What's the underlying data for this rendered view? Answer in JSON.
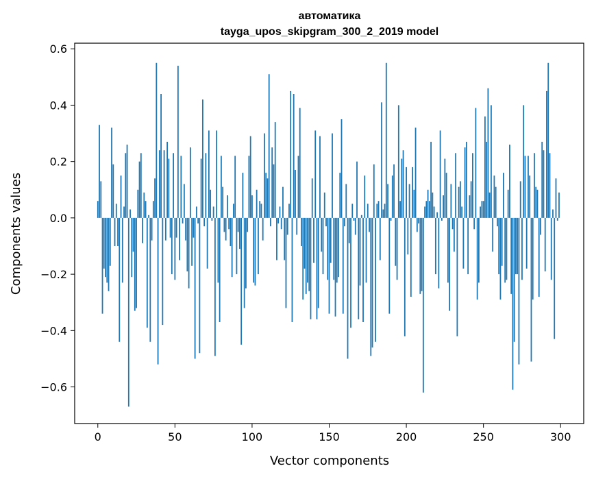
{
  "chart_data": {
    "type": "bar",
    "title": "автоматика",
    "subtitle": "tayga_upos_skipgram_300_2_2019 model",
    "xlabel": "Vector components",
    "ylabel": "Components values",
    "xlim": [
      -15,
      315
    ],
    "ylim": [
      -0.73,
      0.62
    ],
    "xticks": [
      0,
      50,
      100,
      150,
      200,
      250,
      300
    ],
    "yticks": [
      -0.6,
      -0.4,
      -0.2,
      0.0,
      0.2,
      0.4,
      0.6
    ],
    "ytick_labels": [
      "−0.6",
      "−0.4",
      "−0.2",
      "0.0",
      "0.2",
      "0.4",
      "0.6"
    ],
    "grid": false,
    "bar_color": "#1f77b4",
    "x": [
      0,
      1,
      2,
      3,
      4,
      5,
      6,
      7,
      8,
      9,
      10,
      11,
      12,
      13,
      14,
      15,
      16,
      17,
      18,
      19,
      20,
      21,
      22,
      23,
      24,
      25,
      26,
      27,
      28,
      29,
      30,
      31,
      32,
      33,
      34,
      35,
      36,
      37,
      38,
      39,
      40,
      41,
      42,
      43,
      44,
      45,
      46,
      47,
      48,
      49,
      50,
      51,
      52,
      53,
      54,
      55,
      56,
      57,
      58,
      59,
      60,
      61,
      62,
      63,
      64,
      65,
      66,
      67,
      68,
      69,
      70,
      71,
      72,
      73,
      74,
      75,
      76,
      77,
      78,
      79,
      80,
      81,
      82,
      83,
      84,
      85,
      86,
      87,
      88,
      89,
      90,
      91,
      92,
      93,
      94,
      95,
      96,
      97,
      98,
      99,
      100,
      101,
      102,
      103,
      104,
      105,
      106,
      107,
      108,
      109,
      110,
      111,
      112,
      113,
      114,
      115,
      116,
      117,
      118,
      119,
      120,
      121,
      122,
      123,
      124,
      125,
      126,
      127,
      128,
      129,
      130,
      131,
      132,
      133,
      134,
      135,
      136,
      137,
      138,
      139,
      140,
      141,
      142,
      143,
      144,
      145,
      146,
      147,
      148,
      149,
      150,
      151,
      152,
      153,
      154,
      155,
      156,
      157,
      158,
      159,
      160,
      161,
      162,
      163,
      164,
      165,
      166,
      167,
      168,
      169,
      170,
      171,
      172,
      173,
      174,
      175,
      176,
      177,
      178,
      179,
      180,
      181,
      182,
      183,
      184,
      185,
      186,
      187,
      188,
      189,
      190,
      191,
      192,
      193,
      194,
      195,
      196,
      197,
      198,
      199,
      200,
      201,
      202,
      203,
      204,
      205,
      206,
      207,
      208,
      209,
      210,
      211,
      212,
      213,
      214,
      215,
      216,
      217,
      218,
      219,
      220,
      221,
      222,
      223,
      224,
      225,
      226,
      227,
      228,
      229,
      230,
      231,
      232,
      233,
      234,
      235,
      236,
      237,
      238,
      239,
      240,
      241,
      242,
      243,
      244,
      245,
      246,
      247,
      248,
      249,
      250,
      251,
      252,
      253,
      254,
      255,
      256,
      257,
      258,
      259,
      260,
      261,
      262,
      263,
      264,
      265,
      266,
      267,
      268,
      269,
      270,
      271,
      272,
      273,
      274,
      275,
      276,
      277,
      278,
      279,
      280,
      281,
      282,
      283,
      284,
      285,
      286,
      287,
      288,
      289,
      290,
      291,
      292,
      293,
      294,
      295,
      296,
      297,
      298,
      299
    ],
    "values": [
      0.06,
      0.33,
      0.13,
      -0.34,
      -0.18,
      -0.21,
      -0.23,
      -0.26,
      -0.17,
      0.32,
      0.19,
      -0.1,
      0.05,
      -0.1,
      -0.44,
      0.15,
      -0.23,
      0.04,
      0.23,
      0.26,
      -0.67,
      0.03,
      -0.21,
      -0.12,
      -0.33,
      -0.32,
      0.1,
      0.2,
      0.23,
      -0.09,
      0.09,
      0.06,
      -0.39,
      0.01,
      -0.44,
      -0.08,
      0.06,
      0.14,
      0.55,
      -0.52,
      0.24,
      0.44,
      -0.38,
      0.24,
      -0.08,
      0.27,
      0.21,
      -0.07,
      -0.2,
      0.23,
      -0.22,
      -0.07,
      0.54,
      -0.15,
      0.22,
      -0.02,
      0.12,
      -0.08,
      -0.19,
      -0.25,
      0.25,
      -0.17,
      -0.07,
      -0.5,
      0.04,
      -0.02,
      -0.48,
      0.21,
      0.42,
      -0.03,
      0.23,
      -0.18,
      0.31,
      0.1,
      -0.01,
      0.04,
      -0.49,
      0.31,
      -0.23,
      -0.37,
      0.22,
      0.11,
      -0.05,
      -0.08,
      0.08,
      -0.04,
      -0.1,
      -0.21,
      0.05,
      0.22,
      -0.2,
      -0.05,
      -0.11,
      -0.45,
      0.16,
      -0.32,
      -0.25,
      -0.05,
      0.22,
      0.29,
      0.08,
      -0.23,
      -0.24,
      0.1,
      -0.2,
      0.06,
      0.05,
      -0.08,
      0.3,
      0.16,
      0.14,
      0.51,
      -0.03,
      0.25,
      0.19,
      0.34,
      -0.15,
      -0.02,
      0.04,
      -0.04,
      0.11,
      -0.15,
      -0.32,
      -0.06,
      0.05,
      0.45,
      -0.37,
      0.44,
      0.17,
      -0.06,
      0.22,
      0.39,
      -0.1,
      -0.29,
      -0.18,
      -0.27,
      -0.23,
      -0.26,
      -0.36,
      0.14,
      -0.16,
      0.31,
      -0.36,
      -0.32,
      0.29,
      -0.12,
      -0.2,
      0.09,
      -0.03,
      -0.22,
      -0.34,
      -0.16,
      0.3,
      -0.22,
      -0.35,
      -0.23,
      -0.21,
      0.16,
      0.35,
      -0.34,
      -0.03,
      0.12,
      -0.5,
      -0.09,
      -0.39,
      0.05,
      -0.01,
      -0.06,
      0.2,
      -0.36,
      -0.24,
      0.01,
      -0.37,
      0.15,
      -0.23,
      0.05,
      -0.05,
      -0.49,
      -0.46,
      0.19,
      -0.44,
      0.05,
      0.06,
      -0.15,
      0.41,
      0.03,
      0.05,
      0.55,
      0.12,
      -0.34,
      -0.01,
      0.15,
      0.19,
      -0.17,
      -0.22,
      0.4,
      0.06,
      0.21,
      0.24,
      -0.42,
      0.18,
      -0.13,
      0.12,
      -0.28,
      0.18,
      0.1,
      0.32,
      -0.05,
      -0.02,
      -0.27,
      -0.26,
      -0.62,
      0.04,
      0.06,
      0.1,
      0.06,
      0.27,
      0.09,
      0.04,
      -0.2,
      0.02,
      -0.25,
      0.31,
      -0.01,
      0.08,
      0.21,
      0.16,
      -0.23,
      -0.33,
      0.12,
      -0.04,
      -0.12,
      0.23,
      -0.42,
      0.11,
      0.13,
      0.04,
      -0.18,
      0.25,
      0.27,
      -0.2,
      0.08,
      0.13,
      0.23,
      -0.04,
      0.39,
      -0.29,
      -0.23,
      0.04,
      0.06,
      0.06,
      0.36,
      0.27,
      0.46,
      0.09,
      0.4,
      -0.12,
      0.15,
      0.11,
      -0.03,
      -0.2,
      -0.29,
      -0.17,
      0.16,
      -0.23,
      -0.22,
      0.1,
      0.26,
      -0.27,
      -0.61,
      -0.44,
      -0.2,
      -0.2,
      -0.52,
      0.13,
      -0.22,
      0.4,
      0.22,
      -0.18,
      0.22,
      0.15,
      -0.51,
      -0.29,
      0.23,
      0.11,
      0.1,
      -0.28,
      -0.06,
      0.27,
      0.24,
      -0.19,
      0.45,
      0.55,
      0.23,
      -0.22,
      0.03,
      -0.43,
      0.14,
      -0.01,
      0.09
    ]
  }
}
